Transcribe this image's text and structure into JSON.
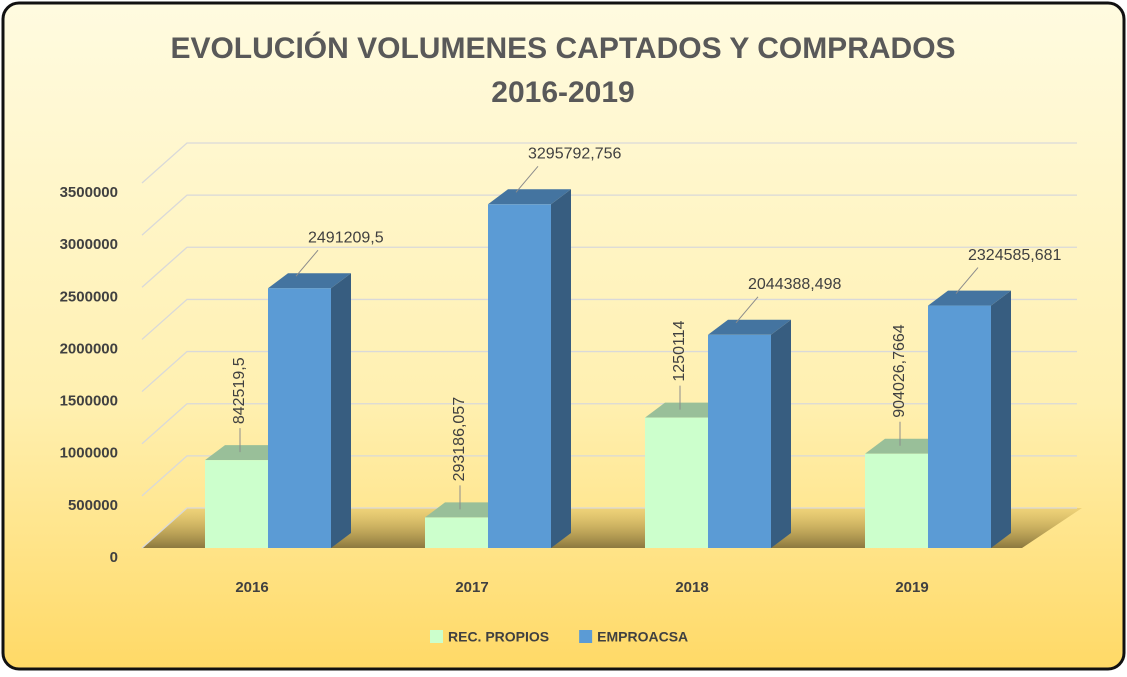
{
  "chart_data": {
    "type": "bar3d",
    "title": "EVOLUCIÓN VOLUMENES CAPTADOS Y COMPRADOS",
    "subtitle": "2016-2019",
    "categories": [
      "2016",
      "2017",
      "2018",
      "2019"
    ],
    "series": [
      {
        "name": "REC. PROPIOS",
        "color": "#ccffcc",
        "values": [
          842519.5,
          293186.057,
          1250114,
          904026.7664
        ],
        "value_labels": [
          "842519,5",
          "293186,057",
          "1250114",
          "904026,7664"
        ]
      },
      {
        "name": "EMPROACSA",
        "color": "#5b9bd5",
        "values": [
          2491209.5,
          3295792.756,
          2044388.498,
          2324585.681
        ],
        "value_labels": [
          "2491209,5",
          "3295792,756",
          "2044388,498",
          "2324585,681"
        ]
      }
    ],
    "ylim": [
      0,
      3500000
    ],
    "yticks": [
      0,
      500000,
      1000000,
      1500000,
      2000000,
      2500000,
      3000000,
      3500000
    ],
    "grid": true,
    "legend": "bottom"
  }
}
